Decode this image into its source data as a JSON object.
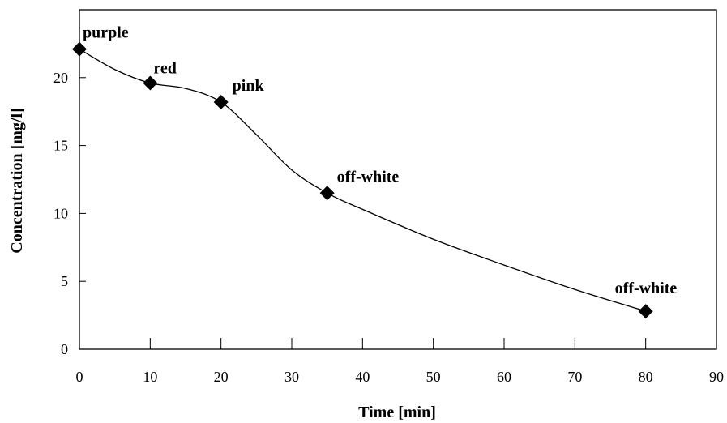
{
  "chart_data": {
    "type": "line",
    "xlabel": "Time [min]",
    "ylabel": "Concentration [mg/l]",
    "xlim": [
      0,
      90
    ],
    "ylim": [
      0,
      25
    ],
    "xticks": [
      0,
      10,
      20,
      30,
      40,
      50,
      60,
      70,
      80,
      90
    ],
    "yticks": [
      0,
      5,
      10,
      15,
      20
    ],
    "grid": false,
    "legend": "none",
    "series": [
      {
        "marker": "diamond",
        "points": [
          {
            "x": 0,
            "y": 22.1,
            "label": "purple"
          },
          {
            "x": 10,
            "y": 19.6,
            "label": "red"
          },
          {
            "x": 20,
            "y": 18.2,
            "label": "pink"
          },
          {
            "x": 35,
            "y": 11.5,
            "label": "off-white"
          },
          {
            "x": 80,
            "y": 2.8,
            "label": "off-white"
          }
        ]
      }
    ],
    "curve": [
      [
        0,
        22.1
      ],
      [
        5,
        20.6
      ],
      [
        10,
        19.6
      ],
      [
        15,
        19.2
      ],
      [
        20,
        18.2
      ],
      [
        25,
        15.8
      ],
      [
        30,
        13.2
      ],
      [
        35,
        11.5
      ],
      [
        40,
        10.3
      ],
      [
        50,
        8.1
      ],
      [
        60,
        6.2
      ],
      [
        70,
        4.4
      ],
      [
        80,
        2.8
      ]
    ]
  }
}
